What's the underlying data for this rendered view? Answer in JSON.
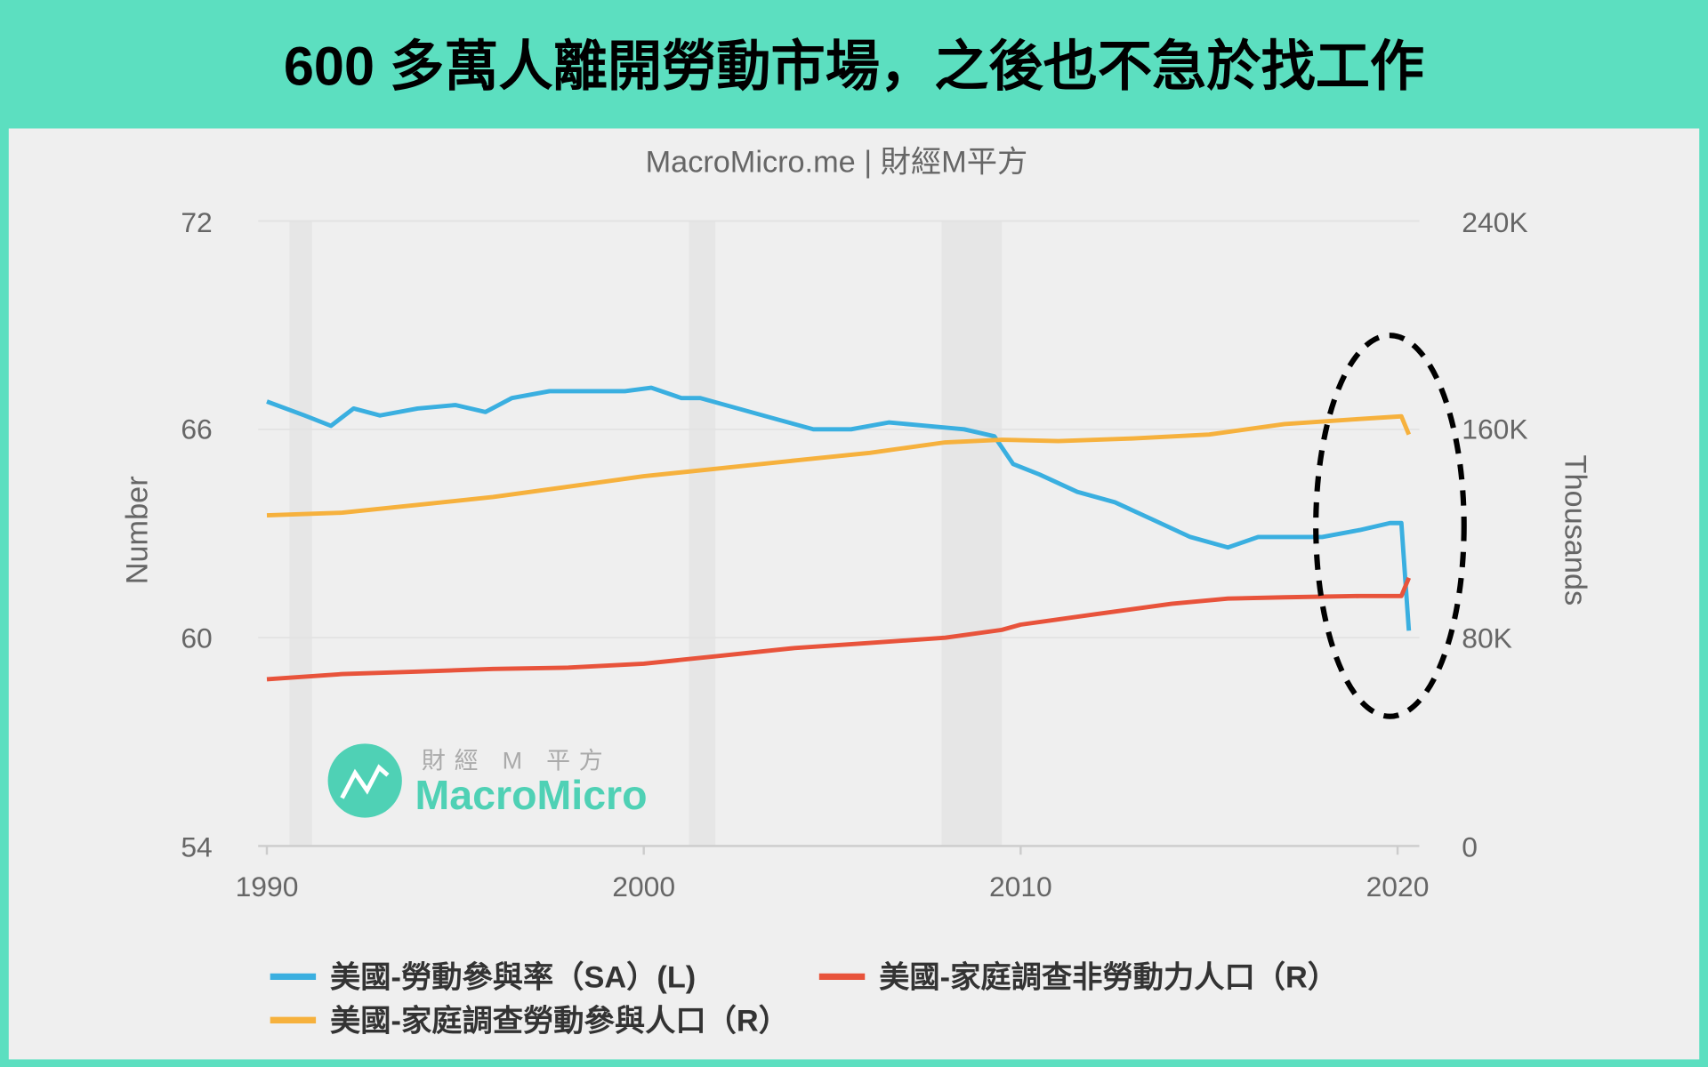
{
  "title": "600 多萬人離開勞動市場，之後也不急於找工作",
  "chart_data": {
    "type": "line",
    "subtitle": "MacroMicro.me | 財經M平方",
    "ylabel_left": "Number",
    "ylabel_right": "Thousands",
    "ylim_left": [
      54,
      72
    ],
    "ylim_right": [
      0,
      240
    ],
    "xlim": [
      1990,
      2020.6
    ],
    "x_ticks": [
      "1990",
      "2000",
      "2010",
      "2020"
    ],
    "y_ticks_left": [
      "72",
      "66",
      "60",
      "54"
    ],
    "y_ticks_right": [
      "240K",
      "160K",
      "80K",
      "0"
    ],
    "recessions": [
      [
        1990.6,
        1991.2
      ],
      [
        2001.2,
        2001.9
      ],
      [
        2007.9,
        2009.5
      ]
    ],
    "legend_position": "bottom",
    "series": [
      {
        "name": "美國-勞動參與率（SA）(L)",
        "axis": "left",
        "color": "#3aafe0",
        "x": [
          1990,
          1991,
          1991.7,
          1992.3,
          1993,
          1994,
          1995,
          1995.8,
          1996.5,
          1997.5,
          1998.5,
          1999.5,
          2000.2,
          2001,
          2001.5,
          2002.5,
          2003.5,
          2004.5,
          2005.5,
          2006.5,
          2007.5,
          2008.5,
          2009.3,
          2009.8,
          2010.5,
          2011.5,
          2012.5,
          2013.5,
          2014.5,
          2015.5,
          2016.3,
          2017,
          2018,
          2019,
          2019.8,
          2020.1,
          2020.3
        ],
        "y": [
          66.8,
          66.4,
          66.1,
          66.6,
          66.4,
          66.6,
          66.7,
          66.5,
          66.9,
          67.1,
          67.1,
          67.1,
          67.2,
          66.9,
          66.9,
          66.6,
          66.3,
          66.0,
          66.0,
          66.2,
          66.1,
          66.0,
          65.8,
          65.0,
          64.7,
          64.2,
          63.9,
          63.4,
          62.9,
          62.6,
          62.9,
          62.9,
          62.9,
          63.1,
          63.3,
          63.3,
          60.2
        ]
      },
      {
        "name": "美國-家庭調查非勞動力人口（R）",
        "axis": "right",
        "color": "#e8533b",
        "x": [
          1990,
          1992,
          1994,
          1996,
          1998,
          2000,
          2002,
          2004,
          2006,
          2008,
          2009.5,
          2010,
          2012,
          2014,
          2015.5,
          2017,
          2019,
          2020.1,
          2020.3
        ],
        "y": [
          64,
          66,
          67,
          68,
          68.5,
          70,
          73,
          76,
          78,
          80,
          83,
          85,
          89,
          93,
          95,
          95.5,
          96,
          96,
          103
        ]
      },
      {
        "name": "美國-家庭調查勞動參與人口（R）",
        "axis": "right",
        "color": "#f6b13d",
        "x": [
          1990,
          1992,
          1994,
          1996,
          1998,
          2000,
          2002,
          2004,
          2006,
          2008,
          2009.5,
          2011,
          2013,
          2015,
          2017,
          2019,
          2020.1,
          2020.3
        ],
        "y": [
          127,
          128,
          131,
          134,
          138,
          142,
          145,
          148,
          151,
          155,
          156,
          155.5,
          156.5,
          158,
          162,
          164,
          165,
          158
        ]
      }
    ]
  },
  "logo": {
    "cn": "財經 M 平方",
    "en": "MacroMicro"
  }
}
